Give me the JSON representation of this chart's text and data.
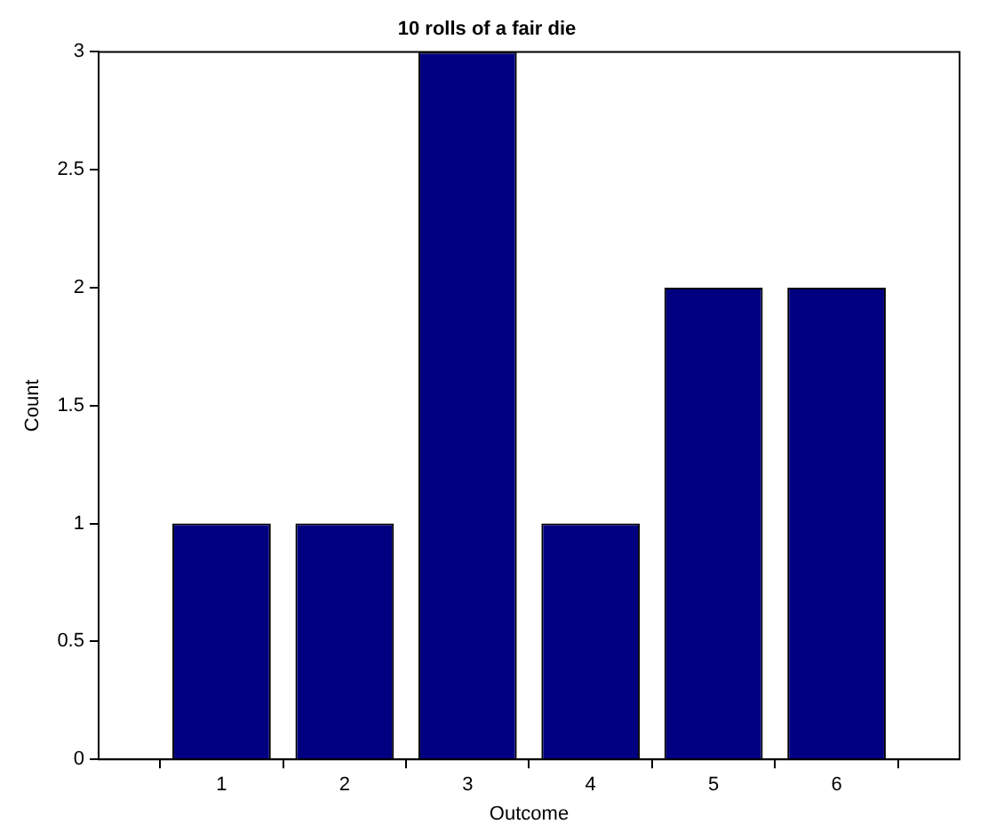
{
  "chart_data": {
    "type": "bar",
    "title": "10 rolls of a fair die",
    "xlabel": "Outcome",
    "ylabel": "Count",
    "x": [
      1,
      2,
      3,
      4,
      5,
      6
    ],
    "values": [
      1,
      1,
      3,
      1,
      2,
      2
    ],
    "color": "#000080",
    "xlim": [
      0,
      7
    ],
    "xticks": [
      1,
      2,
      3,
      4,
      5,
      6
    ],
    "ylim": [
      0,
      3
    ],
    "yticks": [
      0,
      0.5,
      1,
      1.5,
      2,
      2.5,
      3
    ],
    "grid": false,
    "legend": false
  }
}
